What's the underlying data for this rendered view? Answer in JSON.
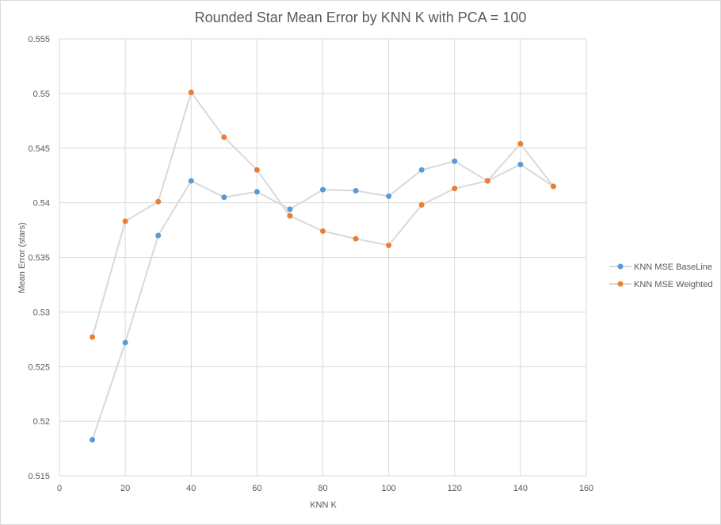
{
  "chart_data": {
    "type": "scatter",
    "title": "Rounded Star Mean Error by KNN K with PCA = 100",
    "xlabel": "KNN K",
    "ylabel": "Mean Error (stars)",
    "xlim": [
      0,
      160
    ],
    "ylim": [
      0.515,
      0.555
    ],
    "x_ticks": [
      0,
      20,
      40,
      60,
      80,
      100,
      120,
      140,
      160
    ],
    "y_ticks": [
      0.515,
      0.52,
      0.525,
      0.53,
      0.535,
      0.54,
      0.545,
      0.55,
      0.555
    ],
    "y_tick_labels": [
      "0.515",
      "0.52",
      "0.525",
      "0.53",
      "0.535",
      "0.54",
      "0.545",
      "0.55",
      "0.555"
    ],
    "grid": true,
    "legend_position": "right",
    "line_color": "#d9d9d9",
    "x": [
      10,
      20,
      30,
      40,
      50,
      60,
      70,
      80,
      90,
      100,
      110,
      120,
      130,
      140,
      150
    ],
    "series": [
      {
        "name": "KNN MSE BaseLine",
        "color": "#5b9bd5",
        "values": [
          0.5183,
          0.5272,
          0.537,
          0.542,
          0.5405,
          0.541,
          0.5394,
          0.5412,
          0.5411,
          0.5406,
          0.543,
          0.5438,
          0.542,
          0.5435,
          0.5415
        ]
      },
      {
        "name": "KNN MSE Weighted",
        "color": "#ed7d31",
        "values": [
          0.5277,
          0.5383,
          0.5401,
          0.5501,
          0.546,
          0.543,
          0.5388,
          0.5374,
          0.5367,
          0.5361,
          0.5398,
          0.5413,
          0.542,
          0.5454,
          0.5415
        ]
      }
    ]
  }
}
